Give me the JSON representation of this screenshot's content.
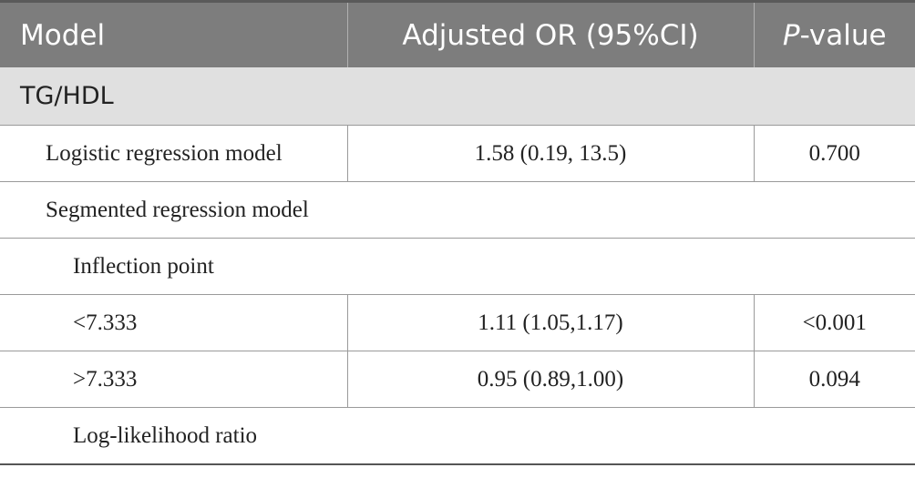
{
  "header": {
    "model": "Model",
    "or": "Adjusted OR (95%CI)",
    "p_italic": "P",
    "p_rest": "-value"
  },
  "section": "TG/HDL",
  "rows": [
    {
      "label": "Logistic regression model",
      "or": "1.58 (0.19, 13.5)",
      "p": "0.700"
    },
    {
      "label": "Segmented regression model"
    },
    {
      "label": "Inflection point"
    },
    {
      "label": "<7.333",
      "or": "1.11 (1.05,1.17)",
      "p": "<0.001"
    },
    {
      "label": ">7.333",
      "or": "0.95 (0.89,1.00)",
      "p": "0.094"
    },
    {
      "label": "Log-likelihood ratio"
    }
  ]
}
